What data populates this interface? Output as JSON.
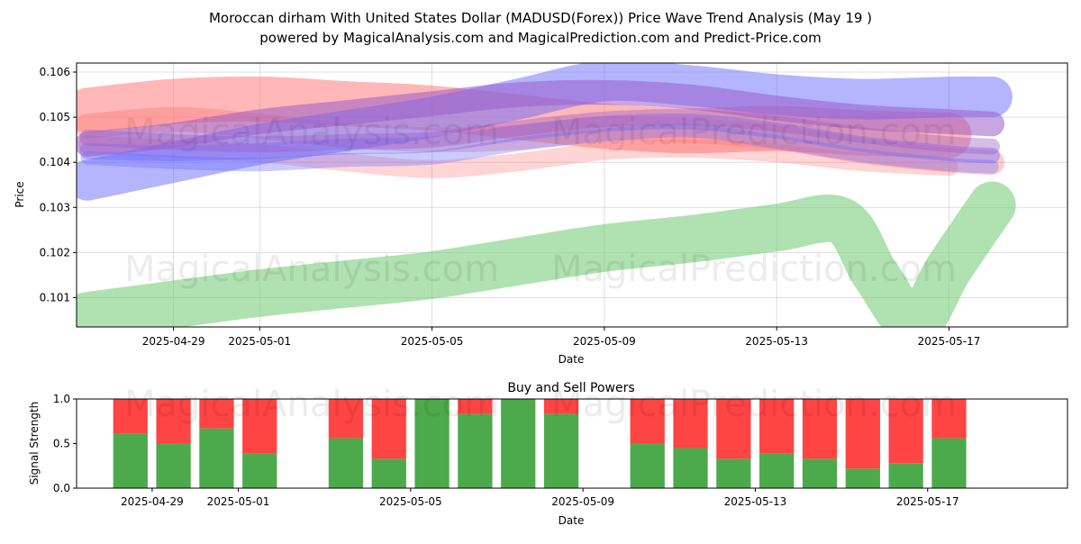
{
  "header": {
    "title_line1": "Moroccan dirham With United States Dollar (MADUSD(Forex)) Price Wave Trend Analysis (May 19 )",
    "title_line2": "powered by MagicalAnalysis.com and MagicalPrediction.com and Predict-Price.com"
  },
  "watermarks": [
    "MagicalAnalysis.com",
    "MagicalPrediction.com"
  ],
  "colors": {
    "red": "#ff6f6f",
    "blue": "#6a6aff",
    "purple": "#9a5cc8",
    "green": "#7ccd7c",
    "buy": "#4caa4c",
    "sell": "#ff4444"
  },
  "chart_data": [
    {
      "type": "line",
      "title": "",
      "xlabel": "Date",
      "ylabel": "Price",
      "x_ticks": [
        "2025-04-29",
        "2025-05-01",
        "2025-05-05",
        "2025-05-09",
        "2025-05-13",
        "2025-05-17"
      ],
      "y_ticks": [
        "0.101",
        "0.102",
        "0.103",
        "0.104",
        "0.105",
        "0.106"
      ],
      "ylim": [
        0.10035,
        0.1062
      ],
      "xlim": [
        "2025-04-26T18:00",
        "2025-05-19T18:00"
      ],
      "grid": true,
      "series": [
        {
          "color": "red",
          "width": 1.0,
          "opacity": 0.5,
          "x": [
            "2025-04-27",
            "2025-04-29",
            "2025-05-01",
            "2025-05-03",
            "2025-05-05",
            "2025-05-07",
            "2025-05-09",
            "2025-05-11",
            "2025-05-13",
            "2025-05-15",
            "2025-05-17"
          ],
          "y": [
            0.10515,
            0.10535,
            0.1054,
            0.1053,
            0.1052,
            0.105,
            0.1048,
            0.1047,
            0.10475,
            0.10465,
            0.1046
          ]
        },
        {
          "color": "red",
          "width": 0.55,
          "opacity": 0.35,
          "x": [
            "2025-04-27",
            "2025-04-29",
            "2025-05-01",
            "2025-05-03",
            "2025-05-05",
            "2025-05-07",
            "2025-05-09",
            "2025-05-11",
            "2025-05-13",
            "2025-05-15",
            "2025-05-17",
            "2025-05-18"
          ],
          "y": [
            0.1048,
            0.10495,
            0.1048,
            0.1046,
            0.1045,
            0.10455,
            0.10475,
            0.1047,
            0.10455,
            0.10425,
            0.10405,
            0.104
          ]
        },
        {
          "color": "red",
          "width": 0.4,
          "opacity": 0.3,
          "x": [
            "2025-04-27",
            "2025-04-29",
            "2025-05-01",
            "2025-05-03",
            "2025-05-05",
            "2025-05-07",
            "2025-05-09",
            "2025-05-11",
            "2025-05-13",
            "2025-05-15",
            "2025-05-17"
          ],
          "y": [
            0.1044,
            0.1043,
            0.1042,
            0.104,
            0.10385,
            0.104,
            0.10425,
            0.1043,
            0.1042,
            0.104,
            0.1039
          ]
        },
        {
          "color": "blue",
          "width": 0.9,
          "opacity": 0.5,
          "x": [
            "2025-04-27",
            "2025-04-29",
            "2025-05-01",
            "2025-05-03",
            "2025-05-05",
            "2025-05-07",
            "2025-05-09",
            "2025-05-11",
            "2025-05-13",
            "2025-05-15",
            "2025-05-17",
            "2025-05-18"
          ],
          "y": [
            0.1036,
            0.104,
            0.1044,
            0.1047,
            0.105,
            0.1054,
            0.1058,
            0.1057,
            0.1055,
            0.1054,
            0.10545,
            0.10545
          ]
        },
        {
          "color": "blue",
          "width": 0.35,
          "opacity": 0.4,
          "x": [
            "2025-04-27",
            "2025-04-29",
            "2025-05-01",
            "2025-05-03",
            "2025-05-05",
            "2025-05-07",
            "2025-05-09",
            "2025-05-11",
            "2025-05-13",
            "2025-05-15",
            "2025-05-17",
            "2025-05-18"
          ],
          "y": [
            0.10425,
            0.1042,
            0.10425,
            0.10435,
            0.1044,
            0.10465,
            0.10485,
            0.1049,
            0.1047,
            0.1044,
            0.1042,
            0.10415
          ]
        },
        {
          "color": "blue",
          "width": 0.3,
          "opacity": 0.35,
          "x": [
            "2025-04-27",
            "2025-04-29",
            "2025-05-01",
            "2025-05-03",
            "2025-05-05",
            "2025-05-07",
            "2025-05-09",
            "2025-05-11",
            "2025-05-13",
            "2025-05-15",
            "2025-05-17",
            "2025-05-18"
          ],
          "y": [
            0.1041,
            0.104,
            0.10395,
            0.10405,
            0.1041,
            0.1044,
            0.1046,
            0.1047,
            0.10445,
            0.10415,
            0.10395,
            0.1039
          ]
        },
        {
          "color": "purple",
          "width": 0.55,
          "opacity": 0.55,
          "x": [
            "2025-04-27",
            "2025-04-29",
            "2025-05-01",
            "2025-05-03",
            "2025-05-05",
            "2025-05-07",
            "2025-05-09",
            "2025-05-11",
            "2025-05-13",
            "2025-05-15",
            "2025-05-17",
            "2025-05-18"
          ],
          "y": [
            0.1044,
            0.1046,
            0.1049,
            0.1051,
            0.1053,
            0.1055,
            0.10555,
            0.10545,
            0.1052,
            0.105,
            0.1049,
            0.10485
          ]
        },
        {
          "color": "purple",
          "width": 0.35,
          "opacity": 0.4,
          "x": [
            "2025-04-27",
            "2025-04-29",
            "2025-05-01",
            "2025-05-03",
            "2025-05-05",
            "2025-05-07",
            "2025-05-09",
            "2025-05-11",
            "2025-05-13",
            "2025-05-15",
            "2025-05-17",
            "2025-05-18"
          ],
          "y": [
            0.10455,
            0.10445,
            0.1044,
            0.10445,
            0.1045,
            0.10475,
            0.10495,
            0.105,
            0.10485,
            0.1046,
            0.1044,
            0.10435
          ]
        },
        {
          "color": "green",
          "width": 1.05,
          "opacity": 0.6,
          "x": [
            "2025-04-27",
            "2025-04-29",
            "2025-05-01",
            "2025-05-03",
            "2025-05-05",
            "2025-05-07",
            "2025-05-09",
            "2025-05-11",
            "2025-05-13",
            "2025-05-14.5",
            "2025-05-15.3",
            "2025-05-16.2",
            "2025-05-17",
            "2025-05-18"
          ],
          "y": [
            0.1006,
            0.10085,
            0.1011,
            0.1013,
            0.1015,
            0.1018,
            0.1021,
            0.1023,
            0.10255,
            0.1027,
            0.1015,
            0.10045,
            0.10165,
            0.10305
          ]
        }
      ]
    },
    {
      "type": "bar",
      "title": "Buy and Sell Powers",
      "xlabel": "Date",
      "ylabel": "Signal Strength",
      "x_ticks": [
        "2025-04-29",
        "2025-05-01",
        "2025-05-05",
        "2025-05-09",
        "2025-05-13",
        "2025-05-17"
      ],
      "y_ticks": [
        "0.0",
        "0.5",
        "1.0"
      ],
      "ylim": [
        0,
        1
      ],
      "series": [
        {
          "name": "Buy",
          "color": "buy"
        },
        {
          "name": "Sell",
          "color": "sell"
        }
      ],
      "dates": [
        "2025-04-28",
        "2025-04-29",
        "2025-04-30",
        "2025-05-01",
        "2025-05-03",
        "2025-05-04",
        "2025-05-05",
        "2025-05-06",
        "2025-05-07",
        "2025-05-08",
        "2025-05-10",
        "2025-05-11",
        "2025-05-12",
        "2025-05-13",
        "2025-05-14",
        "2025-05-15",
        "2025-05-16",
        "2025-05-17"
      ],
      "buy": [
        0.61,
        0.5,
        0.67,
        0.39,
        0.56,
        0.33,
        1.0,
        0.83,
        1.0,
        0.83,
        0.5,
        0.45,
        0.33,
        0.39,
        0.33,
        0.22,
        0.28,
        0.56
      ]
    }
  ]
}
